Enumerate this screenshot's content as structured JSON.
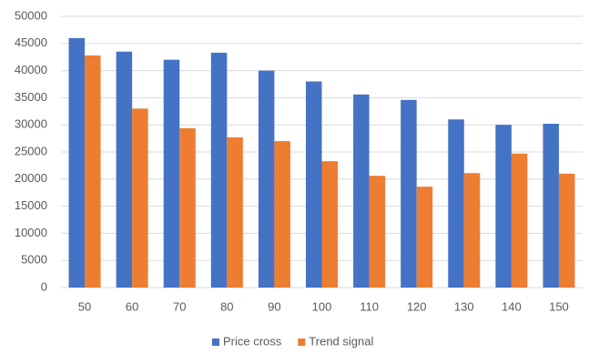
{
  "chart_data": {
    "type": "bar",
    "categories": [
      "50",
      "60",
      "70",
      "80",
      "90",
      "100",
      "110",
      "120",
      "130",
      "140",
      "150"
    ],
    "series": [
      {
        "name": "Price cross",
        "color": "#4472c4",
        "values": [
          46000,
          43500,
          42000,
          43300,
          40000,
          38000,
          35600,
          34600,
          31000,
          30000,
          30200
        ]
      },
      {
        "name": "Trend signal",
        "color": "#ed7d31",
        "values": [
          42800,
          33000,
          29400,
          27700,
          27000,
          23300,
          20600,
          18600,
          21100,
          24700,
          21000
        ]
      }
    ],
    "ylim": [
      0,
      50000
    ],
    "yticks": [
      0,
      5000,
      10000,
      15000,
      20000,
      25000,
      30000,
      35000,
      40000,
      45000,
      50000
    ],
    "grid": true,
    "legend": "bottom"
  }
}
